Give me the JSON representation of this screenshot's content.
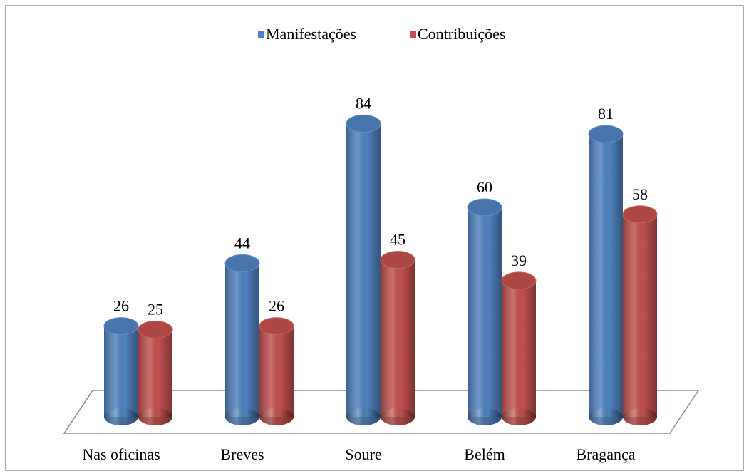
{
  "chart_data": {
    "type": "bar",
    "categories": [
      "Nas oficinas",
      "Breves",
      "Soure",
      "Belém",
      "Bragança"
    ],
    "series": [
      {
        "name": "Manifestações",
        "color": "#4f81bd",
        "values": [
          26,
          44,
          84,
          60,
          81
        ]
      },
      {
        "name": "Contribuições",
        "color": "#c0504d",
        "values": [
          25,
          26,
          45,
          39,
          58
        ]
      }
    ],
    "legend": "top"
  }
}
